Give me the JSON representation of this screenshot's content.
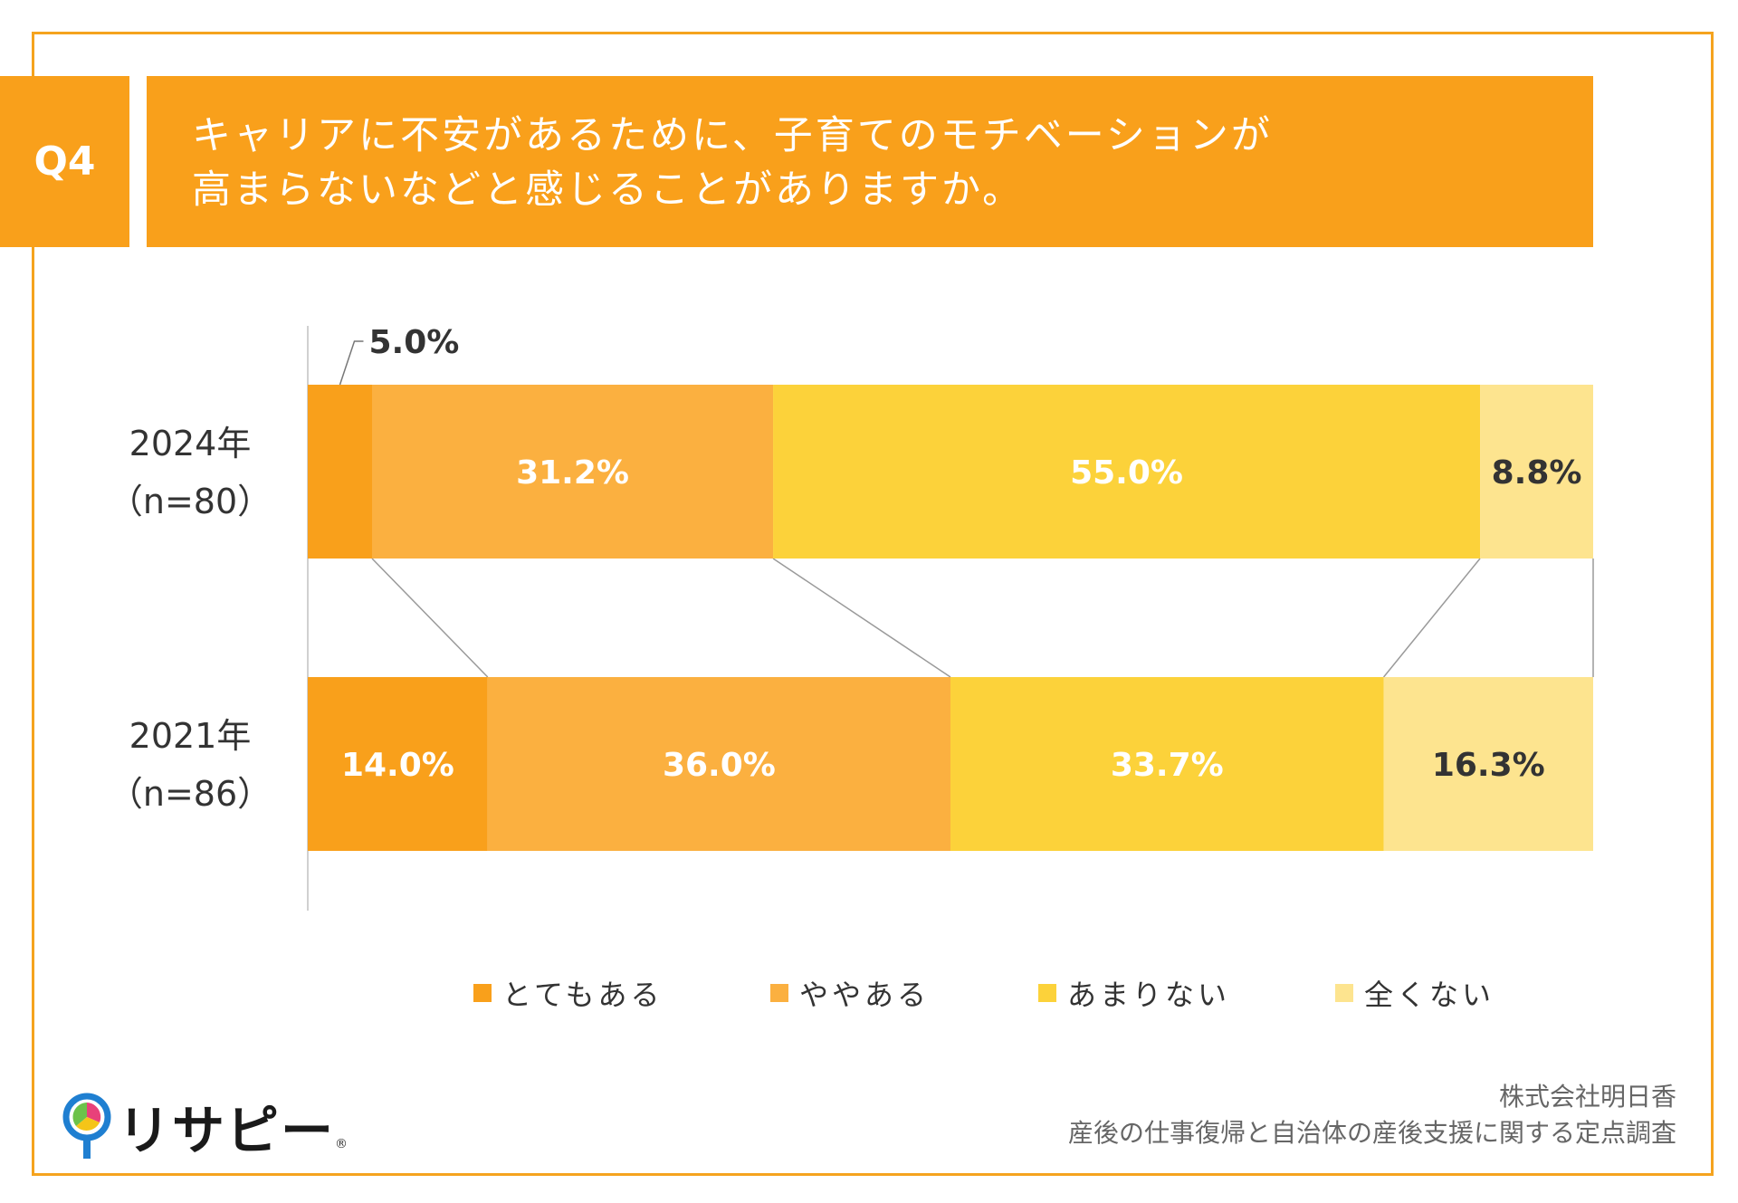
{
  "question": {
    "badge": "Q4",
    "line1": "キャリアに不安があるために、子育てのモチベーションが",
    "line2": "高まらないなどと感じることがありますか。"
  },
  "colors": {
    "accent": "#f9a01b",
    "series": [
      "#f9a01b",
      "#fbb040",
      "#fcd23a",
      "#fde48f"
    ]
  },
  "chart_data": {
    "type": "bar",
    "orientation": "horizontal-stacked-100",
    "categories": [
      {
        "year": "2024年",
        "n": "（n=80）"
      },
      {
        "year": "2021年",
        "n": "（n=86）"
      }
    ],
    "series": [
      {
        "name": "とてもある",
        "values": [
          5.0,
          14.0
        ],
        "labels": [
          "5.0%",
          "14.0%"
        ]
      },
      {
        "name": "ややある",
        "values": [
          31.2,
          36.0
        ],
        "labels": [
          "31.2%",
          "36.0%"
        ]
      },
      {
        "name": "あまりない",
        "values": [
          55.0,
          33.7
        ],
        "labels": [
          "55.0%",
          "33.7%"
        ]
      },
      {
        "name": "全くない",
        "values": [
          8.8,
          16.3
        ],
        "labels": [
          "8.8%",
          "16.3%"
        ]
      }
    ],
    "xlim": [
      0,
      100
    ],
    "legend_position": "bottom"
  },
  "logo": {
    "text": "リサピー",
    "mark": "®"
  },
  "source": {
    "line1": "株式会社明日香",
    "line2": "産後の仕事復帰と自治体の産後支援に関する定点調査"
  }
}
